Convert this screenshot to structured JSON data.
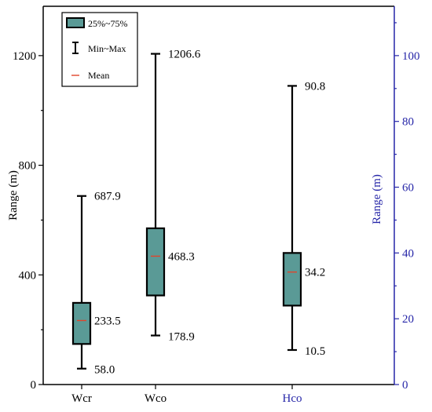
{
  "chart_data": {
    "type": "box",
    "categories": [
      "Wcr",
      "Wco",
      "Hco"
    ],
    "ylabel_left": "Range (m)",
    "ylabel_right": "Range (m)",
    "ylim_left": [
      0,
      1380
    ],
    "ylim_right": [
      0,
      115
    ],
    "yticks_left": [
      0,
      400,
      800,
      1200
    ],
    "yticks_right": [
      0,
      20,
      40,
      60,
      80,
      100
    ],
    "legend": {
      "position": "top-left",
      "entries": [
        "25%~75%",
        "Min~Max",
        "Mean"
      ]
    },
    "series": [
      {
        "category": "Wcr",
        "axis": "left",
        "min": 58.0,
        "q1": 148,
        "mean": 233.5,
        "q3": 298,
        "max": 687.9,
        "labels": {
          "max": "687.9",
          "mean": "233.5",
          "min": "58.0"
        }
      },
      {
        "category": "Wco",
        "axis": "left",
        "min": 178.9,
        "q1": 325,
        "mean": 468.3,
        "q3": 570,
        "max": 1206.6,
        "labels": {
          "max": "1206.6",
          "mean": "468.3",
          "min": "178.9"
        }
      },
      {
        "category": "Hco",
        "axis": "right",
        "min": 10.5,
        "q1": 24,
        "mean": 34.2,
        "q3": 40,
        "max": 90.8,
        "labels": {
          "max": "90.8",
          "mean": "34.2",
          "min": "10.5"
        }
      }
    ],
    "colors": {
      "box_fill": "#5a9a96",
      "box_stroke": "#000000",
      "mean_line": "#e0452b",
      "right_axis": "#2626a8",
      "left_axis": "#000000"
    }
  }
}
